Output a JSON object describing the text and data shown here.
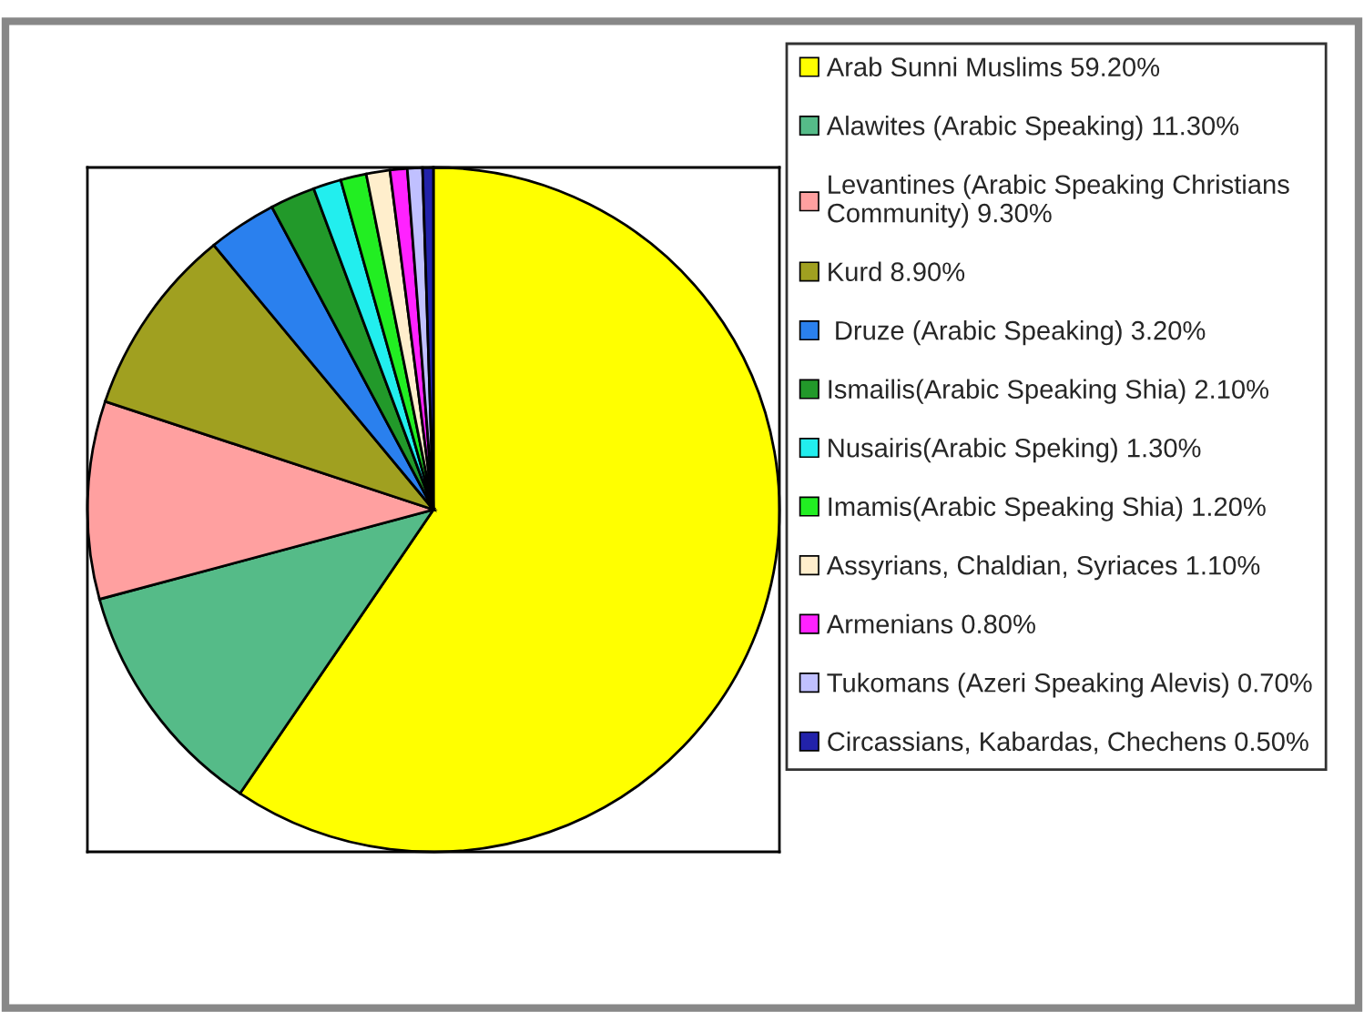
{
  "chart_data": {
    "type": "pie",
    "categories": [
      "Arab Sunni Muslims",
      "Alawites (Arabic Speaking)",
      "Levantines (Arabic Speaking Christians Community)",
      "Kurd",
      " Druze (Arabic Speaking)",
      "Ismailis(Arabic Speaking Shia)",
      "Nusairis(Arabic Speking)",
      "Imamis(Arabic Speaking Shia)",
      "Assyrians, Chaldian, Syriaces",
      "Armenians",
      "Tukomans (Azeri Speaking Alevis)",
      "Circassians, Kabardas, Chechens"
    ],
    "values": [
      59.2,
      11.3,
      9.3,
      8.9,
      3.2,
      2.1,
      1.3,
      1.2,
      1.1,
      0.8,
      0.7,
      0.5
    ],
    "value_labels": [
      "59.20%",
      "11.30%",
      "9.30%",
      "8.90%",
      "3.20%",
      "2.10%",
      "1.30%",
      "1.20%",
      "1.10%",
      "0.80%",
      "0.70%",
      "0.50%"
    ],
    "colors": [
      "#ffff00",
      "#55bb88",
      "#ffa0a0",
      "#a0a020",
      "#2a80ee",
      "#22992a",
      "#22eeee",
      "#22ee22",
      "#ffeecc",
      "#ff22ff",
      "#c0c0ff",
      "#2222aa"
    ],
    "legend": "right"
  }
}
